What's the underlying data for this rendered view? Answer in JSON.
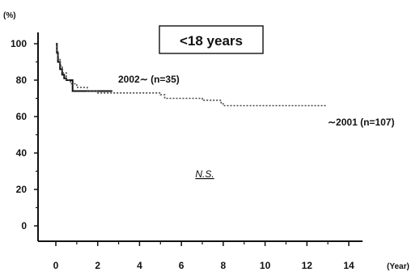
{
  "chart_data": {
    "type": "line",
    "title": "<18 years",
    "y_unit_label": "(%)",
    "x_unit_label": "(Year)",
    "annotation": "N.S.",
    "xlim": [
      0,
      14
    ],
    "ylim": [
      0,
      100
    ],
    "x_ticks": [
      "0",
      "2",
      "4",
      "6",
      "8",
      "10",
      "12",
      "14"
    ],
    "y_ticks": [
      "0",
      "20",
      "40",
      "60",
      "80",
      "100"
    ],
    "grid": false,
    "series": [
      {
        "name": "2002∼ (n=35)",
        "style": "solid-step",
        "color": "#111111",
        "points": [
          [
            0,
            100
          ],
          [
            0.05,
            95
          ],
          [
            0.1,
            90
          ],
          [
            0.2,
            86
          ],
          [
            0.3,
            83
          ],
          [
            0.4,
            81
          ],
          [
            0.5,
            80
          ],
          [
            0.8,
            77
          ],
          [
            0.8,
            74
          ],
          [
            2.7,
            74
          ]
        ]
      },
      {
        "name": "∼2001 (n=107)",
        "style": "dotted-step",
        "color": "#444444",
        "points": [
          [
            0,
            100
          ],
          [
            0.05,
            96
          ],
          [
            0.1,
            92
          ],
          [
            0.2,
            88
          ],
          [
            0.3,
            84
          ],
          [
            0.5,
            80
          ],
          [
            0.7,
            78
          ],
          [
            1,
            76
          ],
          [
            1.5,
            74
          ],
          [
            2,
            73
          ],
          [
            4.5,
            73
          ],
          [
            5,
            72
          ],
          [
            5.2,
            70
          ],
          [
            7,
            69
          ],
          [
            7.9,
            67
          ],
          [
            8,
            66
          ],
          [
            12.9,
            66
          ]
        ]
      }
    ]
  }
}
